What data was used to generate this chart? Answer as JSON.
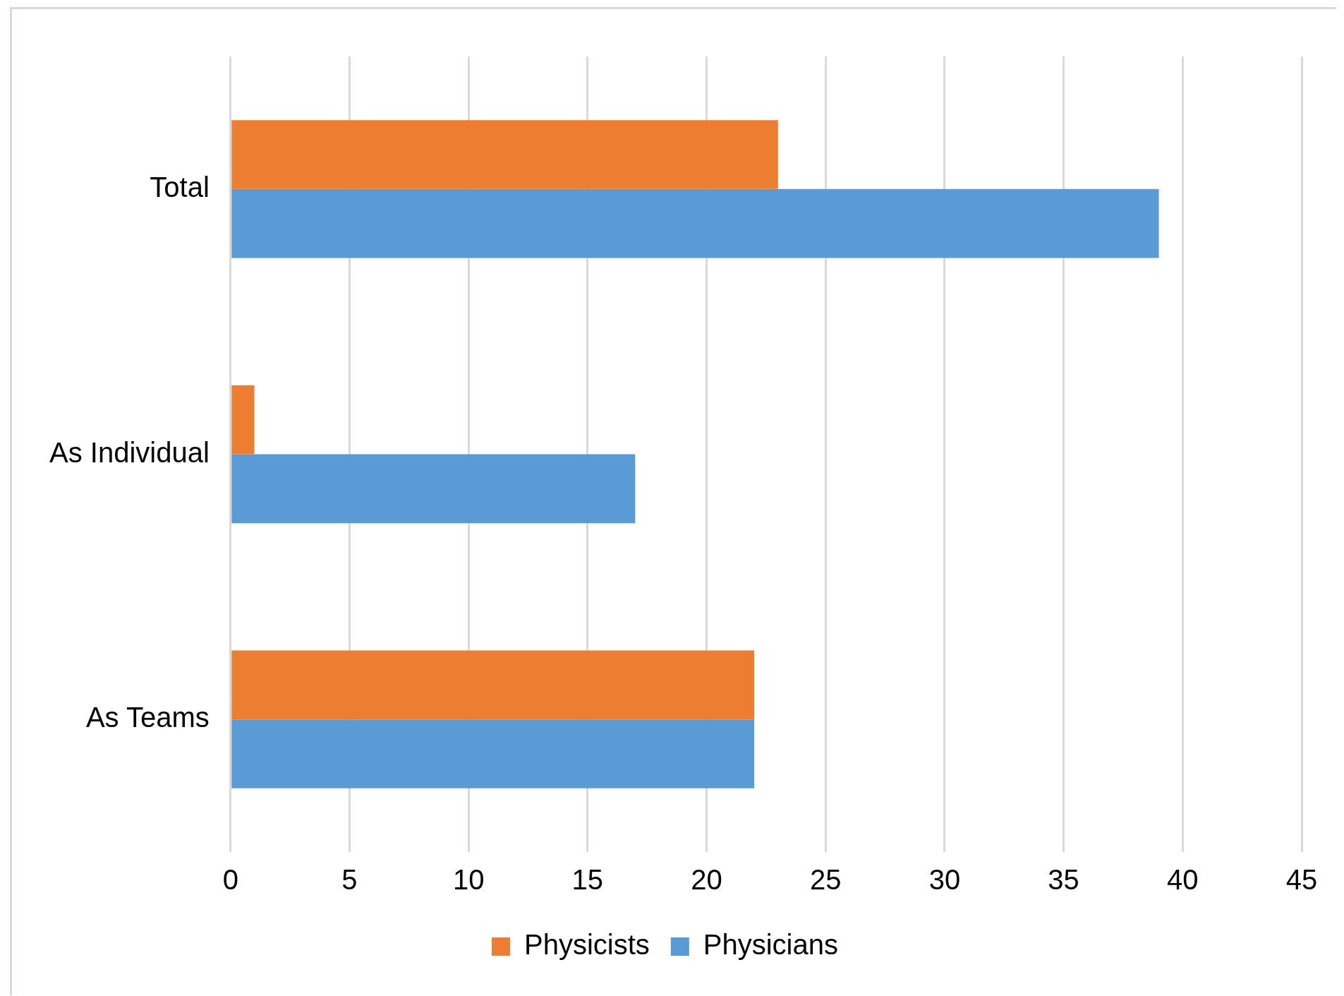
{
  "chart_data": {
    "type": "bar",
    "orientation": "horizontal",
    "categories": [
      "Total",
      "As Individual",
      "As Teams"
    ],
    "series": [
      {
        "name": "Physicists",
        "color": "#ed7d31",
        "values": [
          23,
          1,
          22
        ]
      },
      {
        "name": "Physicians",
        "color": "#5b9bd5",
        "values": [
          39,
          17,
          22
        ]
      }
    ],
    "xlim": [
      0,
      45
    ],
    "xticks": [
      0,
      5,
      10,
      15,
      20,
      25,
      30,
      35,
      40,
      45
    ],
    "grid": "x",
    "legend": "bottom"
  }
}
